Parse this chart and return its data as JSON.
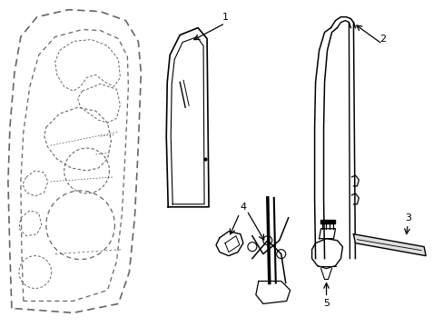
{
  "background_color": "#ffffff",
  "line_color": "#000000",
  "dashed_color": "#666666",
  "label_color": "#000000",
  "figsize": [
    4.89,
    3.6
  ],
  "dpi": 100
}
